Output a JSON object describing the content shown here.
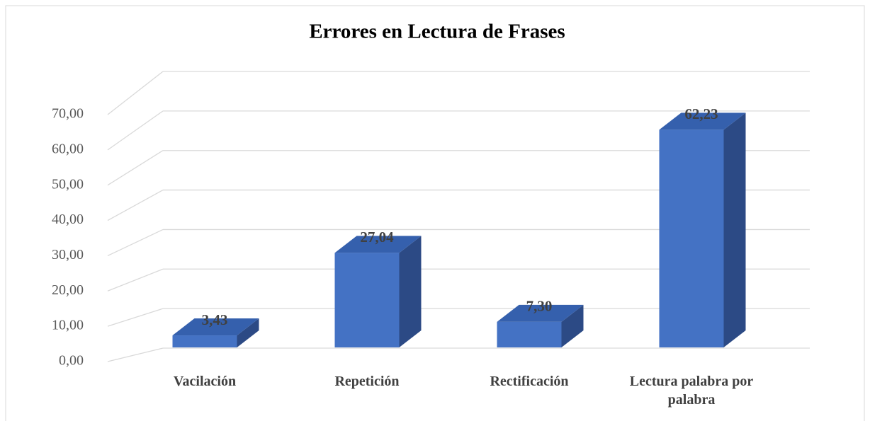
{
  "chart_data": {
    "type": "bar3d",
    "title": "Errores en Lectura de Frases",
    "categories": [
      "Vacilación",
      "Repetición",
      "Rectificación",
      "Lectura palabra por palabra"
    ],
    "values": [
      3.43,
      27.04,
      7.3,
      62.23
    ],
    "value_labels": [
      "3,43",
      "27,04",
      "7,30",
      "62,23"
    ],
    "color": "#4472c4",
    "ylim": [
      0,
      70
    ],
    "yticks": [
      {
        "value": 0,
        "label": "0,00"
      },
      {
        "value": 10,
        "label": "10,00"
      },
      {
        "value": 20,
        "label": "20,00"
      },
      {
        "value": 30,
        "label": "30,00"
      },
      {
        "value": 40,
        "label": "40,00"
      },
      {
        "value": 50,
        "label": "50,00"
      },
      {
        "value": 60,
        "label": "60,00"
      },
      {
        "value": 70,
        "label": "70,00"
      }
    ],
    "grid": true
  }
}
